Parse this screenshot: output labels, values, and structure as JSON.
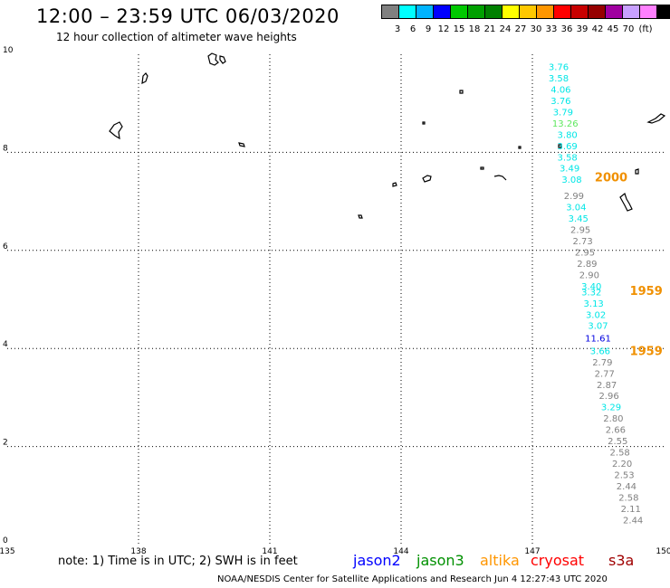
{
  "header": {
    "title": "12:00 – 23:59 UTC 06/03/2020",
    "subtitle": "12 hour collection of altimeter wave heights"
  },
  "legend": {
    "colors": [
      "#808080",
      "#00ffff",
      "#00b4ff",
      "#0000ff",
      "#00c800",
      "#00a000",
      "#008000",
      "#ffff00",
      "#ffc800",
      "#ff9600",
      "#ff0000",
      "#c80000",
      "#960000",
      "#a000a0",
      "#c8a0ff",
      "#ff80ff",
      "#000000"
    ],
    "labels": [
      "3",
      "6",
      "9",
      "12",
      "15",
      "18",
      "21",
      "24",
      "27",
      "30",
      "33",
      "36",
      "39",
      "42",
      "45",
      "70",
      "(ft)"
    ]
  },
  "chart_data": {
    "type": "scatter",
    "xlim": [
      135,
      150
    ],
    "ylim": [
      0,
      10
    ],
    "grid": true,
    "x_ticks": [
      "135",
      "138",
      "141",
      "144",
      "147",
      "150"
    ],
    "y_ticks": [
      "0",
      "2",
      "4",
      "6",
      "8",
      "10"
    ],
    "points": [
      {
        "x": 147.6,
        "y": 9.75,
        "v": "3.76",
        "color": "#00e6e6"
      },
      {
        "x": 147.6,
        "y": 9.52,
        "v": "3.58",
        "color": "#00e6e6"
      },
      {
        "x": 147.65,
        "y": 9.29,
        "v": "4.06",
        "color": "#00e6e6"
      },
      {
        "x": 147.65,
        "y": 9.06,
        "v": "3.76",
        "color": "#00e6e6"
      },
      {
        "x": 147.7,
        "y": 8.83,
        "v": "3.79",
        "color": "#00e6e6"
      },
      {
        "x": 147.75,
        "y": 8.6,
        "v": "13.26",
        "color": "#5ee85e"
      },
      {
        "x": 147.8,
        "y": 8.37,
        "v": "3.80",
        "color": "#00e6e6"
      },
      {
        "x": 147.8,
        "y": 8.14,
        "v": "3.69",
        "color": "#00e6e6"
      },
      {
        "x": 147.8,
        "y": 7.91,
        "v": "3.58",
        "color": "#00e6e6"
      },
      {
        "x": 147.85,
        "y": 7.68,
        "v": "3.49",
        "color": "#00e6e6"
      },
      {
        "x": 147.9,
        "y": 7.45,
        "v": "3.08",
        "color": "#00e6e6"
      },
      {
        "x": 147.95,
        "y": 7.12,
        "v": "2.99",
        "color": "#808080"
      },
      {
        "x": 148.0,
        "y": 6.89,
        "v": "3.04",
        "color": "#00e6e6"
      },
      {
        "x": 148.05,
        "y": 6.66,
        "v": "3.45",
        "color": "#00e6e6"
      },
      {
        "x": 148.1,
        "y": 6.43,
        "v": "2.95",
        "color": "#808080"
      },
      {
        "x": 148.15,
        "y": 6.2,
        "v": "2.73",
        "color": "#808080"
      },
      {
        "x": 148.2,
        "y": 5.97,
        "v": "2.95",
        "color": "#808080"
      },
      {
        "x": 148.25,
        "y": 5.74,
        "v": "2.89",
        "color": "#808080"
      },
      {
        "x": 148.3,
        "y": 5.51,
        "v": "2.90",
        "color": "#808080"
      },
      {
        "x": 148.35,
        "y": 5.28,
        "v": "3.40",
        "color": "#00e6e6"
      },
      {
        "x": 148.35,
        "y": 5.16,
        "v": "3.32",
        "color": "#00e6e6"
      },
      {
        "x": 148.4,
        "y": 4.93,
        "v": "3.13",
        "color": "#00e6e6"
      },
      {
        "x": 148.45,
        "y": 4.7,
        "v": "3.02",
        "color": "#00e6e6"
      },
      {
        "x": 148.5,
        "y": 4.47,
        "v": "3.07",
        "color": "#00e6e6"
      },
      {
        "x": 148.5,
        "y": 4.22,
        "v": "11.61",
        "color": "#0000e0"
      },
      {
        "x": 148.55,
        "y": 3.96,
        "v": "3.66",
        "color": "#00e6e6"
      },
      {
        "x": 148.6,
        "y": 3.73,
        "v": "2.79",
        "color": "#808080"
      },
      {
        "x": 148.65,
        "y": 3.5,
        "v": "2.77",
        "color": "#808080"
      },
      {
        "x": 148.7,
        "y": 3.27,
        "v": "2.87",
        "color": "#808080"
      },
      {
        "x": 148.75,
        "y": 3.04,
        "v": "2.96",
        "color": "#808080"
      },
      {
        "x": 148.8,
        "y": 2.81,
        "v": "3.29",
        "color": "#00e6e6"
      },
      {
        "x": 148.85,
        "y": 2.58,
        "v": "2.80",
        "color": "#808080"
      },
      {
        "x": 148.9,
        "y": 2.35,
        "v": "2.66",
        "color": "#808080"
      },
      {
        "x": 148.95,
        "y": 2.12,
        "v": "2.55",
        "color": "#808080"
      },
      {
        "x": 149.0,
        "y": 1.89,
        "v": "2.58",
        "color": "#808080"
      },
      {
        "x": 149.05,
        "y": 1.66,
        "v": "2.20",
        "color": "#808080"
      },
      {
        "x": 149.1,
        "y": 1.43,
        "v": "2.53",
        "color": "#808080"
      },
      {
        "x": 149.15,
        "y": 1.2,
        "v": "2.44",
        "color": "#808080"
      },
      {
        "x": 149.2,
        "y": 0.97,
        "v": "2.58",
        "color": "#808080"
      },
      {
        "x": 149.25,
        "y": 0.74,
        "v": "2.11",
        "color": "#808080"
      },
      {
        "x": 149.3,
        "y": 0.51,
        "v": "2.44",
        "color": "#808080"
      }
    ],
    "time_labels": [
      {
        "x": 148.8,
        "y": 7.5,
        "v": "2000",
        "color": "#f09000"
      },
      {
        "x": 149.6,
        "y": 5.18,
        "v": "1959",
        "color": "#f09000"
      },
      {
        "x": 149.6,
        "y": 3.96,
        "v": "1959",
        "color": "#f09000"
      }
    ]
  },
  "note": "note:  1) Time is in UTC;  2) SWH is in feet",
  "satellites": [
    {
      "name": "jason2",
      "color": "#0000ff"
    },
    {
      "name": "jason3",
      "color": "#009000"
    },
    {
      "name": "altika",
      "color": "#ff9600"
    },
    {
      "name": "cryosat",
      "color": "#ff0000"
    },
    {
      "name": "s3a",
      "color": "#a00000"
    }
  ],
  "footer": "NOAA/NESDIS Center for Satellite Applications and Research    Jun  4 12:27:43 UTC 2020"
}
